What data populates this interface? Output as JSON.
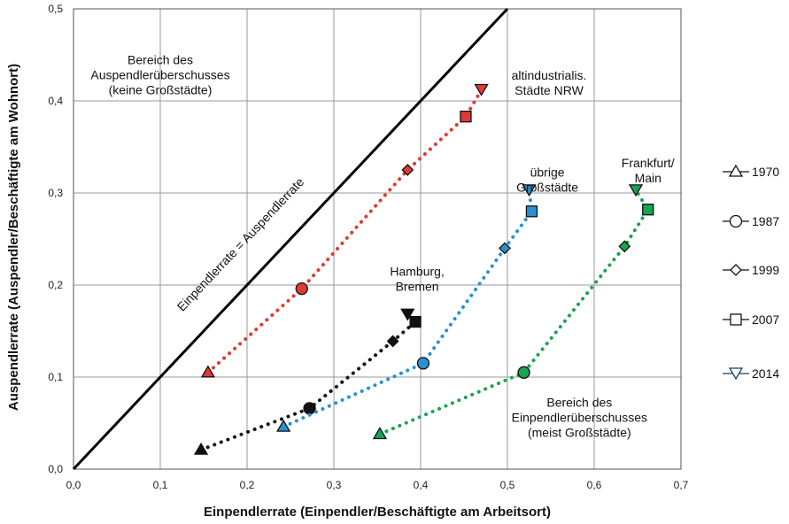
{
  "chart_data": {
    "type": "scatter",
    "xlabel": "Einpendlerrate (Einpendler/Beschäftigte am Arbeitsort)",
    "ylabel": "Auspendlerrate (Auspendler/Beschäftigte am Wohnort)",
    "xlim": [
      0,
      0.7
    ],
    "ylim": [
      0,
      0.5
    ],
    "x_ticks": [
      "0,0",
      "0,1",
      "0,2",
      "0,3",
      "0,4",
      "0,5",
      "0,6",
      "0,7"
    ],
    "y_ticks": [
      "0,0",
      "0,1",
      "0,2",
      "0,3",
      "0,4",
      "0,5"
    ],
    "grid": true,
    "years": [
      "1970",
      "1987",
      "1999",
      "2007",
      "2014"
    ],
    "markers": [
      "triangle-up",
      "circle",
      "diamond",
      "square",
      "triangle-down"
    ],
    "series": [
      {
        "name": "altindustrialis. Städte NRW",
        "color": "#e03a35",
        "points": [
          [
            0.155,
            0.105
          ],
          [
            0.263,
            0.196
          ],
          [
            0.385,
            0.325
          ],
          [
            0.452,
            0.383
          ],
          [
            0.47,
            0.412
          ]
        ]
      },
      {
        "name": "Hamburg, Bremen",
        "color": "#111111",
        "points": [
          [
            0.147,
            0.021
          ],
          [
            0.272,
            0.066
          ],
          [
            0.368,
            0.139
          ],
          [
            0.394,
            0.16
          ],
          [
            0.385,
            0.168
          ]
        ]
      },
      {
        "name": "übrige Großstädte",
        "color": "#2a90d0",
        "points": [
          [
            0.242,
            0.046
          ],
          [
            0.403,
            0.115
          ],
          [
            0.497,
            0.24
          ],
          [
            0.528,
            0.28
          ],
          [
            0.525,
            0.303
          ]
        ]
      },
      {
        "name": "Frankfurt/ Main",
        "color": "#1aa350",
        "points": [
          [
            0.353,
            0.038
          ],
          [
            0.519,
            0.105
          ],
          [
            0.635,
            0.242
          ],
          [
            0.662,
            0.282
          ],
          [
            0.648,
            0.303
          ]
        ]
      }
    ],
    "reference_line": {
      "label": "Einpendlerrate = Auspendlerrate",
      "from": [
        0,
        0
      ],
      "to": [
        0.5,
        0.5
      ]
    },
    "annotations": [
      {
        "lines": [
          "Bereich des",
          "Auspendlerüberschusses",
          "(keine Großstädte)"
        ],
        "at": [
          0.1,
          0.44
        ]
      },
      {
        "lines": [
          "altindustrialis.",
          "Städte NRW"
        ],
        "at": [
          0.548,
          0.423
        ]
      },
      {
        "lines": [
          "übrige",
          "Großstädte"
        ],
        "at": [
          0.546,
          0.318
        ]
      },
      {
        "lines": [
          "Frankfurt/",
          "Main"
        ],
        "at": [
          0.662,
          0.328
        ]
      },
      {
        "lines": [
          "Hamburg,",
          "Bremen"
        ],
        "at": [
          0.396,
          0.21
        ]
      },
      {
        "lines": [
          "Bereich des",
          "Einpendlerüberschusses",
          "(meist Großstädte)"
        ],
        "at": [
          0.583,
          0.068
        ]
      }
    ]
  }
}
